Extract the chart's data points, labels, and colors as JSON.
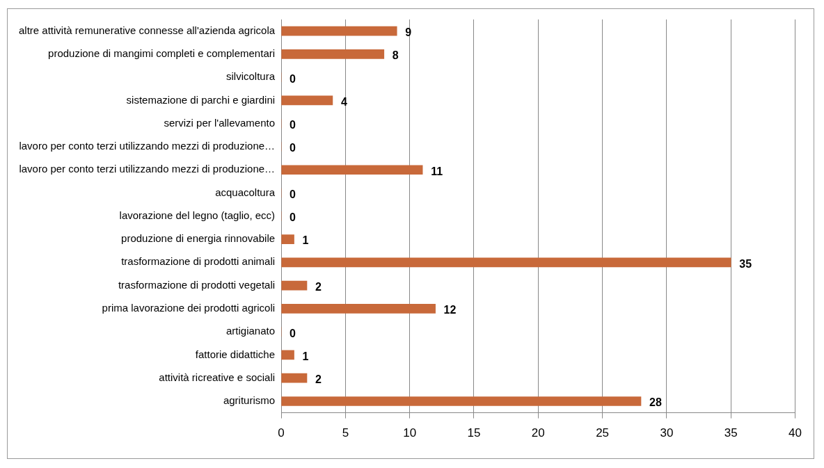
{
  "chart_data": {
    "type": "bar",
    "orientation": "horizontal",
    "categories": [
      "altre attività remunerative connesse all'azienda agricola",
      "produzione di mangimi completi e complementari",
      "silvicoltura",
      "sistemazione di parchi e giardini",
      "servizi per l'allevamento",
      "lavoro per conto terzi utilizzando mezzi di produzione…",
      "lavoro per conto terzi utilizzando mezzi di produzione…",
      "acquacoltura",
      "lavorazione del legno (taglio, ecc)",
      "produzione di energia rinnovabile",
      "trasformazione di prodotti animali",
      "trasformazione di prodotti vegetali",
      "prima lavorazione dei prodotti agricoli",
      "artigianato",
      "fattorie didattiche",
      "attività ricreative e sociali",
      "agriturismo"
    ],
    "values": [
      9,
      8,
      0,
      4,
      0,
      0,
      11,
      0,
      0,
      1,
      35,
      2,
      12,
      0,
      1,
      2,
      28
    ],
    "color": "#c8693a",
    "xlim": [
      0,
      40
    ],
    "xticks": [
      0,
      5,
      10,
      15,
      20,
      25,
      30,
      35,
      40
    ],
    "grid": "x",
    "data_labels": true,
    "legend": false
  }
}
